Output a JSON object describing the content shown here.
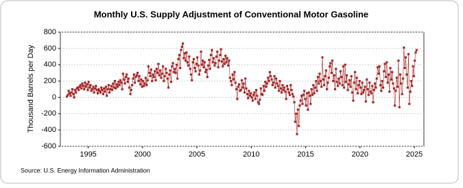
{
  "chart_data": {
    "type": "line",
    "title": "Monthly U.S. Supply Adjustment of Conventional Motor Gasoline",
    "y_label": "Thousand Barrels per Day",
    "source": "Source: U.S. Energy Information Administration",
    "color": "#a52a2a",
    "grid": true,
    "xlim": [
      1992.44,
      2025.88
    ],
    "xticks": [
      1995,
      2000,
      2005,
      2010,
      2015,
      2020,
      2025
    ],
    "ylim": [
      -600,
      800
    ],
    "yticks": [
      -600,
      -400,
      -200,
      0,
      200,
      400,
      600,
      800
    ],
    "x": [
      1993.04,
      1993.13,
      1993.21,
      1993.29,
      1993.38,
      1993.46,
      1993.54,
      1993.63,
      1993.71,
      1993.79,
      1993.88,
      1993.96,
      1994.04,
      1994.13,
      1994.21,
      1994.29,
      1994.38,
      1994.46,
      1994.54,
      1994.63,
      1994.71,
      1994.79,
      1994.88,
      1994.96,
      1995.04,
      1995.13,
      1995.21,
      1995.29,
      1995.38,
      1995.46,
      1995.54,
      1995.63,
      1995.71,
      1995.79,
      1995.88,
      1995.96,
      1996.04,
      1996.13,
      1996.21,
      1996.29,
      1996.38,
      1996.46,
      1996.54,
      1996.63,
      1996.71,
      1996.79,
      1996.88,
      1996.96,
      1997.04,
      1997.13,
      1997.21,
      1997.29,
      1997.38,
      1997.46,
      1997.54,
      1997.63,
      1997.71,
      1997.79,
      1997.88,
      1997.96,
      1998.04,
      1998.13,
      1998.21,
      1998.29,
      1998.38,
      1998.46,
      1998.54,
      1998.63,
      1998.71,
      1998.79,
      1998.88,
      1998.96,
      1999.04,
      1999.13,
      1999.21,
      1999.29,
      1999.38,
      1999.46,
      1999.54,
      1999.63,
      1999.71,
      1999.79,
      1999.88,
      1999.96,
      2000.04,
      2000.13,
      2000.21,
      2000.29,
      2000.38,
      2000.46,
      2000.54,
      2000.63,
      2000.71,
      2000.79,
      2000.88,
      2000.96,
      2001.04,
      2001.13,
      2001.21,
      2001.29,
      2001.38,
      2001.46,
      2001.54,
      2001.63,
      2001.71,
      2001.79,
      2001.88,
      2001.96,
      2002.04,
      2002.13,
      2002.21,
      2002.29,
      2002.38,
      2002.46,
      2002.54,
      2002.63,
      2002.71,
      2002.79,
      2002.88,
      2002.96,
      2003.04,
      2003.13,
      2003.21,
      2003.29,
      2003.38,
      2003.46,
      2003.54,
      2003.63,
      2003.71,
      2003.79,
      2003.88,
      2003.96,
      2004.04,
      2004.13,
      2004.21,
      2004.29,
      2004.38,
      2004.46,
      2004.54,
      2004.63,
      2004.71,
      2004.79,
      2004.88,
      2004.96,
      2005.04,
      2005.13,
      2005.21,
      2005.29,
      2005.38,
      2005.46,
      2005.54,
      2005.63,
      2005.71,
      2005.79,
      2005.88,
      2005.96,
      2006.04,
      2006.13,
      2006.21,
      2006.29,
      2006.38,
      2006.46,
      2006.54,
      2006.63,
      2006.71,
      2006.79,
      2006.88,
      2006.96,
      2007.04,
      2007.13,
      2007.21,
      2007.29,
      2007.38,
      2007.46,
      2007.54,
      2007.63,
      2007.71,
      2007.79,
      2007.88,
      2007.96,
      2008.04,
      2008.13,
      2008.21,
      2008.29,
      2008.38,
      2008.46,
      2008.54,
      2008.63,
      2008.71,
      2008.79,
      2008.88,
      2008.96,
      2009.04,
      2009.13,
      2009.21,
      2009.29,
      2009.38,
      2009.46,
      2009.54,
      2009.63,
      2009.71,
      2009.79,
      2009.88,
      2009.96,
      2010.04,
      2010.13,
      2010.21,
      2010.29,
      2010.38,
      2010.46,
      2010.54,
      2010.63,
      2010.71,
      2010.79,
      2010.88,
      2010.96,
      2011.04,
      2011.13,
      2011.21,
      2011.29,
      2011.38,
      2011.46,
      2011.54,
      2011.63,
      2011.71,
      2011.79,
      2011.88,
      2011.96,
      2012.04,
      2012.13,
      2012.21,
      2012.29,
      2012.38,
      2012.46,
      2012.54,
      2012.63,
      2012.71,
      2012.79,
      2012.88,
      2012.96,
      2013.04,
      2013.13,
      2013.21,
      2013.29,
      2013.38,
      2013.46,
      2013.54,
      2013.63,
      2013.71,
      2013.79,
      2013.88,
      2013.96,
      2014.04,
      2014.13,
      2014.21,
      2014.29,
      2014.38,
      2014.46,
      2014.54,
      2014.63,
      2014.71,
      2014.79,
      2014.88,
      2014.96,
      2015.04,
      2015.13,
      2015.21,
      2015.29,
      2015.38,
      2015.46,
      2015.54,
      2015.63,
      2015.71,
      2015.79,
      2015.88,
      2015.96,
      2016.04,
      2016.13,
      2016.21,
      2016.29,
      2016.38,
      2016.46,
      2016.54,
      2016.63,
      2016.71,
      2016.79,
      2016.88,
      2016.96,
      2017.04,
      2017.13,
      2017.21,
      2017.29,
      2017.38,
      2017.46,
      2017.54,
      2017.63,
      2017.71,
      2017.79,
      2017.88,
      2017.96,
      2018.04,
      2018.13,
      2018.21,
      2018.29,
      2018.38,
      2018.46,
      2018.54,
      2018.63,
      2018.71,
      2018.79,
      2018.88,
      2018.96,
      2019.04,
      2019.13,
      2019.21,
      2019.29,
      2019.38,
      2019.46,
      2019.54,
      2019.63,
      2019.71,
      2019.79,
      2019.88,
      2019.96,
      2020.04,
      2020.13,
      2020.21,
      2020.29,
      2020.38,
      2020.46,
      2020.54,
      2020.63,
      2020.71,
      2020.79,
      2020.88,
      2020.96,
      2021.04,
      2021.13,
      2021.21,
      2021.29,
      2021.38,
      2021.46,
      2021.54,
      2021.63,
      2021.71,
      2021.79,
      2021.88,
      2021.96,
      2022.04,
      2022.13,
      2022.21,
      2022.29,
      2022.38,
      2022.46,
      2022.54,
      2022.63,
      2022.71,
      2022.79,
      2022.88,
      2022.96,
      2023.04,
      2023.13,
      2023.21,
      2023.29,
      2023.38,
      2023.46,
      2023.54,
      2023.63,
      2023.71,
      2023.79,
      2023.88,
      2023.96,
      2024.04,
      2024.13,
      2024.21,
      2024.29,
      2024.38,
      2024.46,
      2024.54,
      2024.63,
      2024.71,
      2024.79,
      2024.88,
      2024.96,
      2025.04,
      2025.13,
      2025.21
    ],
    "values": [
      10,
      30,
      80,
      50,
      20,
      60,
      100,
      40,
      0,
      90,
      60,
      110,
      120,
      90,
      130,
      150,
      110,
      170,
      140,
      100,
      180,
      130,
      160,
      90,
      190,
      120,
      150,
      80,
      100,
      130,
      60,
      110,
      140,
      90,
      50,
      100,
      80,
      60,
      120,
      90,
      40,
      110,
      70,
      130,
      20,
      100,
      150,
      60,
      100,
      140,
      90,
      170,
      120,
      200,
      110,
      160,
      130,
      190,
      150,
      210,
      180,
      100,
      290,
      220,
      170,
      250,
      280,
      190,
      230,
      120,
      40,
      90,
      150,
      230,
      280,
      180,
      250,
      270,
      300,
      200,
      260,
      160,
      220,
      130,
      200,
      140,
      170,
      240,
      150,
      210,
      380,
      300,
      260,
      340,
      200,
      280,
      250,
      320,
      210,
      350,
      300,
      410,
      270,
      330,
      240,
      290,
      380,
      200,
      260,
      350,
      300,
      230,
      120,
      280,
      330,
      190,
      380,
      420,
      310,
      350,
      300,
      400,
      230,
      470,
      520,
      360,
      580,
      620,
      660,
      480,
      540,
      450,
      550,
      430,
      390,
      500,
      350,
      280,
      210,
      430,
      470,
      360,
      320,
      410,
      490,
      390,
      280,
      330,
      560,
      400,
      450,
      370,
      430,
      310,
      340,
      250,
      390,
      460,
      350,
      520,
      580,
      430,
      480,
      390,
      420,
      500,
      560,
      370,
      450,
      520,
      590,
      440,
      380,
      470,
      410,
      510,
      430,
      480,
      390,
      450,
      240,
      200,
      150,
      280,
      220,
      310,
      180,
      100,
      -20,
      130,
      160,
      80,
      90,
      210,
      120,
      170,
      60,
      230,
      110,
      40,
      -10,
      80,
      20,
      50,
      0,
      -40,
      30,
      60,
      -20,
      90,
      20,
      -60,
      -80,
      -30,
      110,
      40,
      30,
      140,
      80,
      190,
      130,
      170,
      240,
      200,
      310,
      260,
      220,
      150,
      180,
      260,
      120,
      230,
      170,
      140,
      80,
      200,
      110,
      60,
      150,
      90,
      120,
      70,
      -20,
      140,
      100,
      60,
      30,
      150,
      90,
      40,
      10,
      -60,
      -300,
      -200,
      -450,
      -150,
      -350,
      -100,
      -40,
      20,
      -80,
      30,
      80,
      -20,
      -100,
      50,
      -150,
      60,
      20,
      -80,
      100,
      30,
      150,
      50,
      120,
      200,
      80,
      250,
      170,
      290,
      200,
      130,
      490,
      220,
      150,
      260,
      330,
      100,
      180,
      240,
      380,
      420,
      300,
      450,
      200,
      270,
      100,
      350,
      190,
      140,
      230,
      170,
      320,
      250,
      150,
      380,
      120,
      400,
      190,
      270,
      90,
      160,
      210,
      130,
      260,
      60,
      -40,
      180,
      310,
      100,
      240,
      50,
      150,
      200,
      120,
      40,
      180,
      60,
      90,
      130,
      -50,
      220,
      100,
      30,
      180,
      70,
      50,
      140,
      -60,
      90,
      170,
      120,
      230,
      370,
      290,
      380,
      150,
      80,
      200,
      120,
      320,
      410,
      250,
      430,
      180,
      280,
      70,
      360,
      220,
      310,
      170,
      110,
      -100,
      80,
      240,
      130,
      450,
      -120,
      280,
      170,
      40,
      230,
      610,
      360,
      490,
      280,
      120,
      530,
      -80,
      70,
      200,
      140,
      380,
      260,
      450,
      550,
      580
    ]
  }
}
